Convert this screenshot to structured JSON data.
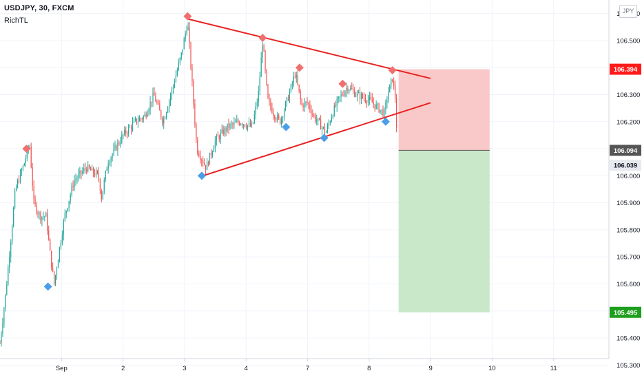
{
  "header": {
    "title": "USDJPY, 30, FXCM",
    "indicator": "RichTL"
  },
  "currency_button": "JPY",
  "colors": {
    "up": "#26a69a",
    "down": "#ef5350",
    "trendline": "#e82121",
    "marker_high": "#f07070",
    "marker_low": "#4a9ee8",
    "risk_zone": "#f9c9c9",
    "reward_zone": "#c9e8c9",
    "label_red": "#ff1a1a",
    "label_green": "#1e9e1e",
    "label_dark": "#555555"
  },
  "chart_data": {
    "type": "candlestick",
    "symbol": "USDJPY",
    "timeframe": "30",
    "ylim": [
      105.25,
      106.65
    ],
    "yticks": [
      "106.600",
      "106.500",
      "106.400",
      "106.300",
      "106.200",
      "106.100",
      "106.000",
      "105.900",
      "105.800",
      "105.700",
      "105.600",
      "105.500",
      "105.400",
      "105.300"
    ],
    "xticks": [
      {
        "label": "Sep",
        "day": 1
      },
      {
        "label": "2",
        "day": 2
      },
      {
        "label": "3",
        "day": 3
      },
      {
        "label": "4",
        "day": 4
      },
      {
        "label": "7",
        "day": 5
      },
      {
        "label": "8",
        "day": 6
      },
      {
        "label": "9",
        "day": 7
      },
      {
        "label": "10",
        "day": 8
      },
      {
        "label": "11",
        "day": 9
      }
    ],
    "price_anchors": [
      [
        0.0,
        105.38
      ],
      [
        0.1,
        105.58
      ],
      [
        0.25,
        105.95
      ],
      [
        0.4,
        106.05
      ],
      [
        0.48,
        106.12
      ],
      [
        0.55,
        105.9
      ],
      [
        0.65,
        105.85
      ],
      [
        0.75,
        105.85
      ],
      [
        0.82,
        105.7
      ],
      [
        0.88,
        105.6
      ],
      [
        0.98,
        105.75
      ],
      [
        1.05,
        105.85
      ],
      [
        1.2,
        105.98
      ],
      [
        1.4,
        106.03
      ],
      [
        1.6,
        106.0
      ],
      [
        1.65,
        105.92
      ],
      [
        1.75,
        106.05
      ],
      [
        2.0,
        106.15
      ],
      [
        2.2,
        106.2
      ],
      [
        2.35,
        106.22
      ],
      [
        2.5,
        106.3
      ],
      [
        2.65,
        106.2
      ],
      [
        2.8,
        106.32
      ],
      [
        2.95,
        106.45
      ],
      [
        3.05,
        106.57
      ],
      [
        3.12,
        106.35
      ],
      [
        3.2,
        106.1
      ],
      [
        3.35,
        106.03
      ],
      [
        3.5,
        106.13
      ],
      [
        3.7,
        106.18
      ],
      [
        3.9,
        106.2
      ],
      [
        4.1,
        106.18
      ],
      [
        4.2,
        106.3
      ],
      [
        4.27,
        106.5
      ],
      [
        4.35,
        106.28
      ],
      [
        4.45,
        106.23
      ],
      [
        4.55,
        106.2
      ],
      [
        4.7,
        106.3
      ],
      [
        4.8,
        106.38
      ],
      [
        4.9,
        106.26
      ],
      [
        5.0,
        106.27
      ],
      [
        5.1,
        106.22
      ],
      [
        5.3,
        106.16
      ],
      [
        5.4,
        106.23
      ],
      [
        5.5,
        106.28
      ],
      [
        5.65,
        106.33
      ],
      [
        5.8,
        106.3
      ],
      [
        6.0,
        106.28
      ],
      [
        6.25,
        106.23
      ],
      [
        6.3,
        106.3
      ],
      [
        6.38,
        106.36
      ],
      [
        6.43,
        106.28
      ],
      [
        6.46,
        106.1
      ]
    ],
    "last_close": 106.039,
    "trendlines": [
      {
        "role": "resistance",
        "from": [
          3.05,
          106.58
        ],
        "to": [
          7.0,
          106.36
        ]
      },
      {
        "role": "support",
        "from": [
          3.3,
          106.0
        ],
        "to": [
          7.0,
          106.27
        ]
      }
    ],
    "swing_markers": [
      {
        "type": "high",
        "x": 0.43,
        "y": 106.1
      },
      {
        "type": "low",
        "x": 0.78,
        "y": 105.59
      },
      {
        "type": "high",
        "x": 3.05,
        "y": 106.59
      },
      {
        "type": "low",
        "x": 3.28,
        "y": 106.0
      },
      {
        "type": "high",
        "x": 4.27,
        "y": 106.51
      },
      {
        "type": "low",
        "x": 4.65,
        "y": 106.18
      },
      {
        "type": "high",
        "x": 4.87,
        "y": 106.4
      },
      {
        "type": "low",
        "x": 5.27,
        "y": 106.14
      },
      {
        "type": "high",
        "x": 5.57,
        "y": 106.34
      },
      {
        "type": "low",
        "x": 6.27,
        "y": 106.2
      },
      {
        "type": "high",
        "x": 6.38,
        "y": 106.39
      }
    ],
    "position": {
      "type": "short",
      "entry": 106.094,
      "stop": 106.394,
      "target": 105.495,
      "x_start": 6.48,
      "x_end": 7.96
    },
    "price_labels": [
      {
        "value": 106.394,
        "text": "106.394",
        "role": "stop"
      },
      {
        "value": 106.094,
        "text": "106.094",
        "role": "entry"
      },
      {
        "value": 106.039,
        "text": "106.039",
        "role": "last"
      },
      {
        "value": 105.495,
        "text": "105.495",
        "role": "target"
      }
    ]
  }
}
